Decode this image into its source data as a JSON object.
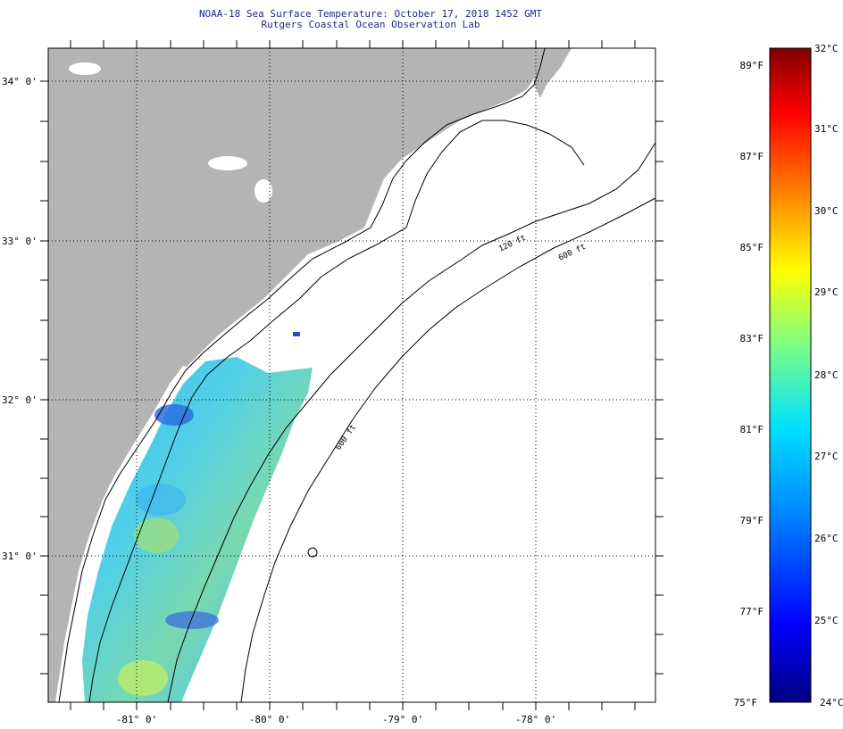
{
  "header": {
    "title": "NOAA-18 Sea Surface Temperature:  October 17, 2018 1452 GMT",
    "subtitle": "Rutgers Coastal Ocean Observation Lab"
  },
  "map": {
    "lon_labels": [
      "-81° 0'",
      "-80° 0'",
      "-79° 0'",
      "-78° 0'"
    ],
    "lat_labels": [
      "34° 0'",
      "33° 0'",
      "32° 0'",
      "31° 0'"
    ],
    "contour_labels": [
      "120 ft",
      "600 ft",
      "600 ft"
    ],
    "colors": {
      "land": "#b4b4b4",
      "ocean": "#ffffff",
      "grid": "#000000"
    }
  },
  "legend": {
    "fahrenheit": [
      "89°F",
      "87°F",
      "85°F",
      "83°F",
      "81°F",
      "79°F",
      "77°F",
      "75°F"
    ],
    "celsius": [
      "32°C",
      "31°C",
      "30°C",
      "29°C",
      "28°C",
      "27°C",
      "26°C",
      "25°C",
      "24°C"
    ],
    "stops": [
      "#000080",
      "#0000ff",
      "#0080ff",
      "#00e0ff",
      "#80ff80",
      "#ffff00",
      "#ff8000",
      "#ff0000",
      "#800000"
    ]
  }
}
